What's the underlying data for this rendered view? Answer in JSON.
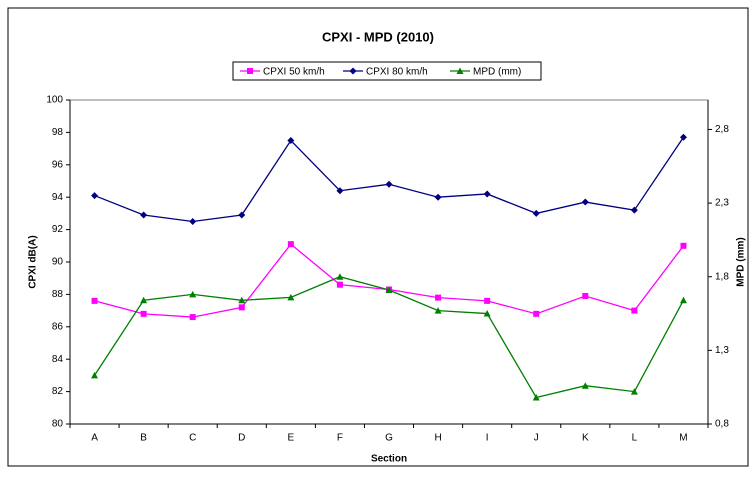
{
  "chart_data": {
    "type": "line",
    "title": "CPXI - MPD (2010)",
    "x_label": "Section",
    "y_label": "CPXI dB(A)",
    "y2_label": "MPD (mm)",
    "categories": [
      "A",
      "B",
      "C",
      "D",
      "E",
      "F",
      "G",
      "H",
      "I",
      "J",
      "K",
      "L",
      "M"
    ],
    "series": [
      {
        "name": "CPXI 50 km/h",
        "color": "#ff00ff",
        "marker": "square",
        "values": [
          87.6,
          86.8,
          86.6,
          87.2,
          91.1,
          88.6,
          88.3,
          87.8,
          87.6,
          86.8,
          87.9,
          87.0,
          91.0
        ]
      },
      {
        "name": "CPXI 80 km/h",
        "color": "#000080",
        "marker": "diamond",
        "values": [
          94.1,
          92.9,
          92.5,
          92.9,
          97.5,
          94.4,
          94.8,
          94.0,
          94.2,
          93.0,
          93.7,
          93.2,
          97.7
        ]
      },
      {
        "name": "MPD (mm)",
        "color": "#008000",
        "marker": "triangle",
        "axis": "y2",
        "values": [
          1.13,
          1.64,
          1.68,
          1.64,
          1.66,
          1.8,
          1.71,
          1.57,
          1.55,
          0.98,
          1.06,
          1.02,
          1.64
        ]
      }
    ],
    "ylim": [
      80,
      100
    ],
    "yticks": [
      80,
      82,
      84,
      86,
      88,
      90,
      92,
      94,
      96,
      98,
      100
    ],
    "y2lim": [
      0.8,
      3.0
    ],
    "y2ticks": [
      {
        "value": 0.8,
        "label": "0,8"
      },
      {
        "value": 1.3,
        "label": "1,3"
      },
      {
        "value": 1.8,
        "label": "1,8"
      },
      {
        "value": 2.3,
        "label": "2,3"
      },
      {
        "value": 2.8,
        "label": "2,8"
      }
    ],
    "legend": "top",
    "grid": false
  }
}
